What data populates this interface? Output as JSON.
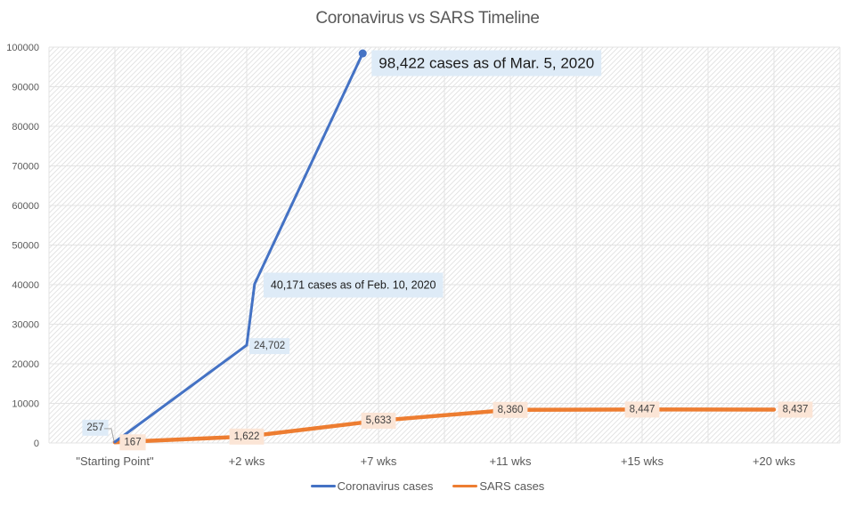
{
  "chart_data": {
    "type": "line",
    "title": "Coronavirus vs SARS Timeline",
    "xlabel": "",
    "ylabel": "",
    "categories": [
      "\"Starting Point\"",
      "+2 wks",
      "+7 wks",
      "+11 wks",
      "+15 wks",
      "+20 wks"
    ],
    "ylim": [
      0,
      100000
    ],
    "yticks": [
      "0",
      "10000",
      "20000",
      "30000",
      "40000",
      "50000",
      "60000",
      "70000",
      "80000",
      "90000",
      "100000"
    ],
    "ytick_values": [
      0,
      10000,
      20000,
      30000,
      40000,
      50000,
      60000,
      70000,
      80000,
      90000,
      100000
    ],
    "grid": true,
    "legend_position": "bottom",
    "series": [
      {
        "name": "Coronavirus cases",
        "color": "#4472C4",
        "points": [
          {
            "x": 0,
            "y": 257,
            "label": "257"
          },
          {
            "x": 1,
            "y": 24702,
            "label": "24,702"
          },
          {
            "x": 1.06,
            "y": 40171,
            "label": "40,171 cases as of Feb. 10, 2020"
          },
          {
            "x": 1.88,
            "y": 98422,
            "label": "98,422 cases as of Mar. 5, 2020"
          }
        ]
      },
      {
        "name": "SARS cases",
        "color": "#ED7D31",
        "points": [
          {
            "x": 0,
            "y": 167,
            "label": "167"
          },
          {
            "x": 1,
            "y": 1622,
            "label": "1,622"
          },
          {
            "x": 2,
            "y": 5633,
            "label": "5,633"
          },
          {
            "x": 3,
            "y": 8360,
            "label": "8,360"
          },
          {
            "x": 4,
            "y": 8447,
            "label": "8,447"
          },
          {
            "x": 5,
            "y": 8437,
            "label": "8,437"
          }
        ]
      }
    ]
  },
  "colors": {
    "corona_label_bg": "#DEEBF7",
    "sars_label_bg": "#FBE5D6"
  }
}
